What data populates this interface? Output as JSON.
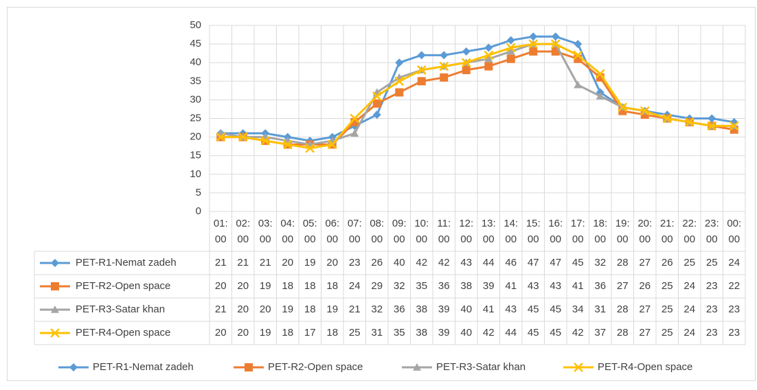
{
  "chart_data": {
    "type": "line",
    "categories": [
      "01:00",
      "02:00",
      "03:00",
      "04:00",
      "05:00",
      "06:00",
      "07:00",
      "08:00",
      "09:00",
      "10:00",
      "11:00",
      "12:00",
      "13:00",
      "14:00",
      "15:00",
      "16:00",
      "17:00",
      "18:00",
      "19:00",
      "20:00",
      "21:00",
      "22:00",
      "23:00",
      "00:00"
    ],
    "series": [
      {
        "name": "PET-R1-Nemat zadeh",
        "color": "#5b9bd5",
        "marker": "diamond",
        "values": [
          21,
          21,
          21,
          20,
          19,
          20,
          23,
          26,
          40,
          42,
          42,
          43,
          44,
          46,
          47,
          47,
          45,
          32,
          28,
          27,
          26,
          25,
          25,
          24
        ]
      },
      {
        "name": "PET-R2-Open space",
        "color": "#ed7d31",
        "marker": "square",
        "values": [
          20,
          20,
          19,
          18,
          18,
          18,
          24,
          29,
          32,
          35,
          36,
          38,
          39,
          41,
          43,
          43,
          41,
          36,
          27,
          26,
          25,
          24,
          23,
          22
        ]
      },
      {
        "name": "PET-R3-Satar khan",
        "color": "#a5a5a5",
        "marker": "triangle",
        "values": [
          21,
          20,
          20,
          19,
          18,
          19,
          21,
          32,
          36,
          38,
          39,
          40,
          41,
          43,
          45,
          45,
          34,
          31,
          28,
          27,
          25,
          24,
          23,
          23
        ]
      },
      {
        "name": "PET-R4-Open space",
        "color": "#ffc000",
        "marker": "x",
        "values": [
          20,
          20,
          19,
          18,
          17,
          18,
          25,
          31,
          35,
          38,
          39,
          40,
          42,
          44,
          45,
          45,
          42,
          37,
          28,
          27,
          25,
          24,
          23,
          23
        ]
      }
    ],
    "ylim": [
      0,
      50
    ],
    "yticks": [
      0,
      5,
      10,
      15,
      20,
      25,
      30,
      35,
      40,
      45,
      50
    ],
    "grid": true,
    "data_table": true,
    "legend": "bottom"
  }
}
